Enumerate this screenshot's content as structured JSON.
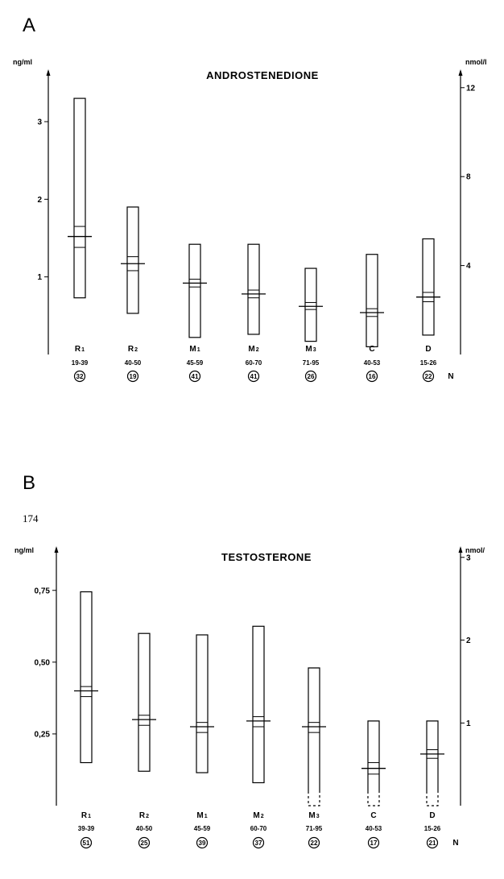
{
  "page": {
    "panel_a_letter": "A",
    "panel_b_letter": "B",
    "page_number": "174"
  },
  "chart_data": [
    {
      "type": "bar",
      "title": "ANDROSTENEDIONE",
      "ylabel": "ng/ml",
      "y2label": "nmol/l",
      "ylim": [
        0,
        3.55
      ],
      "yticks": [
        1,
        2,
        3
      ],
      "ytick_labels": [
        "1",
        "2",
        "3"
      ],
      "y2ticks": [
        1.146,
        2.292,
        3.438
      ],
      "y2tick_labels": [
        "4",
        "8",
        "12"
      ],
      "n_label": "N",
      "categories": [
        "R",
        "R",
        "M",
        "M",
        "M",
        "C",
        "D"
      ],
      "category_subscripts": [
        "1",
        "2",
        "1",
        "2",
        "3",
        "",
        ""
      ],
      "age_ranges": [
        "19-39",
        "40-50",
        "45-59",
        "60-70",
        "71-95",
        "40-53",
        "15-26"
      ],
      "n": [
        "32",
        "19",
        "41",
        "41",
        "26",
        "16",
        "22"
      ],
      "low": [
        0.73,
        0.53,
        0.22,
        0.26,
        0.17,
        0.1,
        0.25
      ],
      "high": [
        3.3,
        1.9,
        1.42,
        1.42,
        1.11,
        1.29,
        1.49
      ],
      "mean": [
        1.52,
        1.17,
        0.92,
        0.78,
        0.62,
        0.54,
        0.74
      ],
      "ci_low": [
        1.38,
        1.08,
        0.87,
        0.73,
        0.58,
        0.49,
        0.68
      ],
      "ci_high": [
        1.65,
        1.26,
        0.97,
        0.83,
        0.67,
        0.59,
        0.8
      ],
      "dashed_bottom": [
        false,
        false,
        false,
        false,
        false,
        false,
        false
      ]
    },
    {
      "type": "bar",
      "title": "TESTOSTERONE",
      "ylabel": "ng/ml",
      "y2label": "nmol/",
      "ylim": [
        0,
        0.87
      ],
      "yticks": [
        0.25,
        0.5,
        0.75
      ],
      "ytick_labels": [
        "0,25",
        "0,50",
        "0,75"
      ],
      "y2ticks": [
        0.288,
        0.577,
        0.865
      ],
      "y2tick_labels": [
        "1",
        "2",
        "3"
      ],
      "n_label": "N",
      "categories": [
        "R",
        "R",
        "M",
        "M",
        "M",
        "C",
        "D"
      ],
      "category_subscripts": [
        "1",
        "2",
        "1",
        "2",
        "3",
        "",
        ""
      ],
      "age_ranges": [
        "39-39",
        "40-50",
        "45-59",
        "60-70",
        "71-95",
        "40-53",
        "15-26"
      ],
      "n": [
        "51",
        "25",
        "39",
        "37",
        "22",
        "17",
        "21"
      ],
      "low": [
        0.15,
        0.12,
        0.115,
        0.08,
        0.0,
        0.0,
        0.0
      ],
      "high": [
        0.745,
        0.6,
        0.595,
        0.625,
        0.48,
        0.295,
        0.295
      ],
      "mean": [
        0.4,
        0.3,
        0.275,
        0.295,
        0.275,
        0.13,
        0.18
      ],
      "ci_low": [
        0.38,
        0.28,
        0.255,
        0.275,
        0.255,
        0.11,
        0.165
      ],
      "ci_high": [
        0.415,
        0.315,
        0.29,
        0.31,
        0.29,
        0.15,
        0.195
      ],
      "dashed_bottom": [
        false,
        false,
        false,
        false,
        true,
        true,
        true
      ]
    }
  ]
}
